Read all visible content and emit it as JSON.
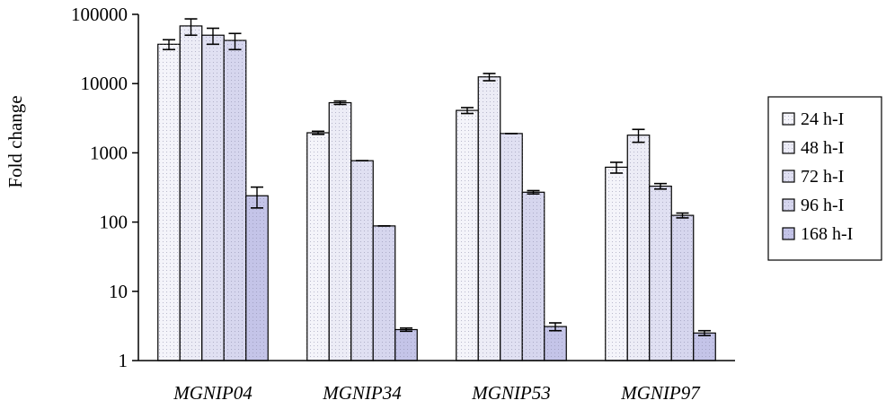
{
  "chart_data": {
    "type": "bar",
    "title": "",
    "xlabel": "",
    "ylabel": "Fold change",
    "yscale": "log",
    "ylim": [
      1,
      100000
    ],
    "yticks": [
      "1",
      "10",
      "100",
      "1000",
      "10000",
      "100000"
    ],
    "categories": [
      "MGNIP04",
      "MGNIP34",
      "MGNIP53",
      "MGNIP97"
    ],
    "series": [
      {
        "name": "24 h-I",
        "values": [
          37000,
          1950,
          4100,
          620
        ],
        "errors": [
          6000,
          100,
          400,
          110
        ],
        "fill": "#f4f4fa"
      },
      {
        "name": "48 h-I",
        "values": [
          68000,
          5300,
          12500,
          1800
        ],
        "errors": [
          18000,
          300,
          1500,
          380
        ],
        "fill": "#ececf6"
      },
      {
        "name": "72 h-I",
        "values": [
          50000,
          770,
          1900,
          330
        ],
        "errors": [
          13000,
          0,
          0,
          30
        ],
        "fill": "#e0e0f2"
      },
      {
        "name": "96 h-I",
        "values": [
          42000,
          88,
          270,
          125
        ],
        "errors": [
          11000,
          0,
          15,
          10
        ],
        "fill": "#d6d6ee"
      },
      {
        "name": "168 h-I",
        "values": [
          240,
          2.8,
          3.1,
          2.5
        ],
        "errors": [
          80,
          0.15,
          0.4,
          0.2
        ],
        "fill": "#c4c4e8"
      }
    ],
    "legend_position": "right",
    "grid": false
  }
}
